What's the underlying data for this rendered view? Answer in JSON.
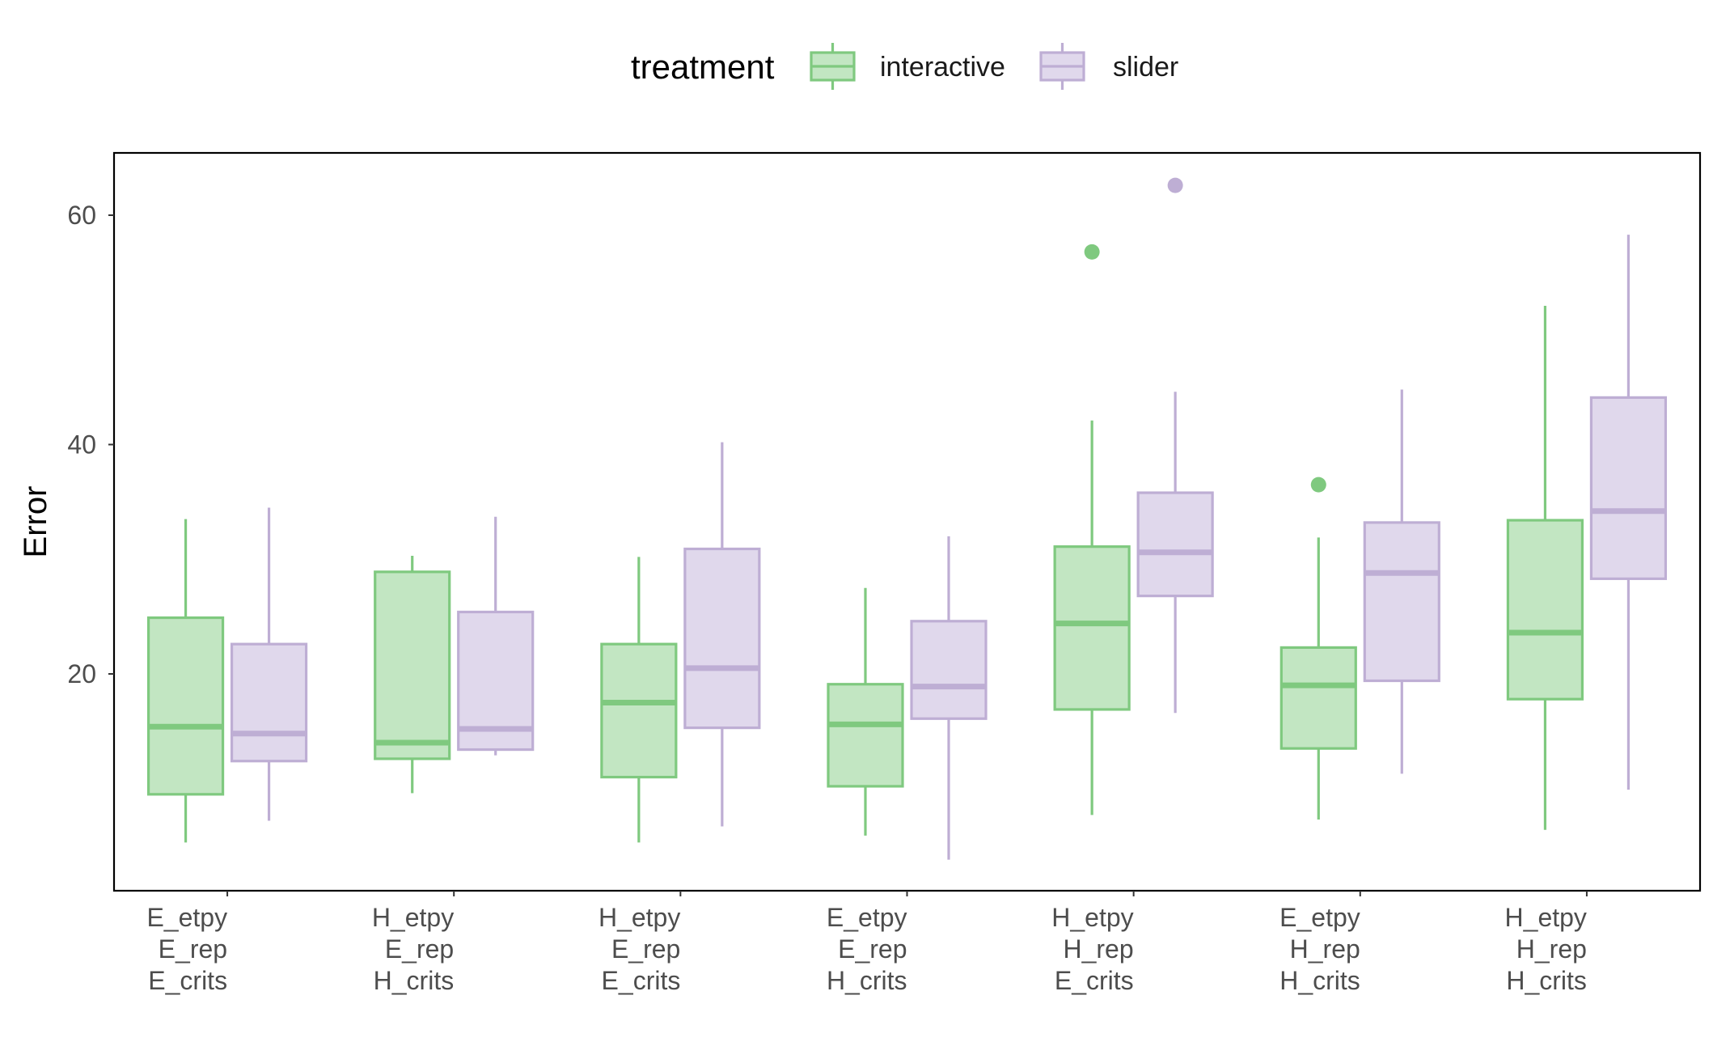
{
  "chart_data": {
    "type": "boxplot",
    "title": "",
    "xlabel": "",
    "ylabel": "Error",
    "ylim": [
      2,
      65
    ],
    "yticks": [
      20,
      40,
      60
    ],
    "grid": false,
    "legend": {
      "title": "treatment",
      "placement": "top",
      "entries": [
        "interactive",
        "slider"
      ]
    },
    "categories": [
      [
        "E_etpy",
        "E_rep",
        "E_crits"
      ],
      [
        "H_etpy",
        "E_rep",
        "H_crits"
      ],
      [
        "H_etpy",
        "E_rep",
        "E_crits"
      ],
      [
        "E_etpy",
        "E_rep",
        "H_crits"
      ],
      [
        "H_etpy",
        "H_rep",
        "E_crits"
      ],
      [
        "E_etpy",
        "H_rep",
        "H_crits"
      ],
      [
        "H_etpy",
        "H_rep",
        "H_crits"
      ]
    ],
    "series": [
      {
        "name": "interactive",
        "stroke": "#7fc97f",
        "fill": "#c2e6c2",
        "boxes": [
          {
            "whisker_low": 5.3,
            "q1": 9.5,
            "median": 15.4,
            "q3": 24.9,
            "whisker_high": 33.5,
            "outliers": []
          },
          {
            "whisker_low": 9.6,
            "q1": 12.6,
            "median": 14.0,
            "q3": 28.9,
            "whisker_high": 30.3,
            "outliers": []
          },
          {
            "whisker_low": 5.3,
            "q1": 11.0,
            "median": 17.5,
            "q3": 22.6,
            "whisker_high": 30.2,
            "outliers": []
          },
          {
            "whisker_low": 5.9,
            "q1": 10.2,
            "median": 15.6,
            "q3": 19.1,
            "whisker_high": 27.5,
            "outliers": []
          },
          {
            "whisker_low": 7.7,
            "q1": 16.9,
            "median": 24.4,
            "q3": 31.1,
            "whisker_high": 42.1,
            "outliers": [
              56.8
            ]
          },
          {
            "whisker_low": 7.3,
            "q1": 13.5,
            "median": 19.0,
            "q3": 22.3,
            "whisker_high": 31.9,
            "outliers": [
              36.5
            ]
          },
          {
            "whisker_low": 6.4,
            "q1": 17.8,
            "median": 23.6,
            "q3": 33.4,
            "whisker_high": 52.1,
            "outliers": []
          }
        ]
      },
      {
        "name": "slider",
        "stroke": "#beaed4",
        "fill": "#e0d8ec",
        "boxes": [
          {
            "whisker_low": 7.2,
            "q1": 12.4,
            "median": 14.8,
            "q3": 22.6,
            "whisker_high": 34.5,
            "outliers": []
          },
          {
            "whisker_low": 12.9,
            "q1": 13.4,
            "median": 15.2,
            "q3": 25.4,
            "whisker_high": 33.7,
            "outliers": []
          },
          {
            "whisker_low": 6.7,
            "q1": 15.3,
            "median": 20.5,
            "q3": 30.9,
            "whisker_high": 40.2,
            "outliers": []
          },
          {
            "whisker_low": 3.8,
            "q1": 16.1,
            "median": 18.9,
            "q3": 24.6,
            "whisker_high": 32.0,
            "outliers": []
          },
          {
            "whisker_low": 16.6,
            "q1": 26.8,
            "median": 30.6,
            "q3": 35.8,
            "whisker_high": 44.6,
            "outliers": [
              62.6
            ]
          },
          {
            "whisker_low": 11.3,
            "q1": 19.4,
            "median": 28.8,
            "q3": 33.2,
            "whisker_high": 44.8,
            "outliers": []
          },
          {
            "whisker_low": 9.9,
            "q1": 28.3,
            "median": 34.2,
            "q3": 44.1,
            "whisker_high": 58.3,
            "outliers": []
          }
        ]
      }
    ]
  }
}
